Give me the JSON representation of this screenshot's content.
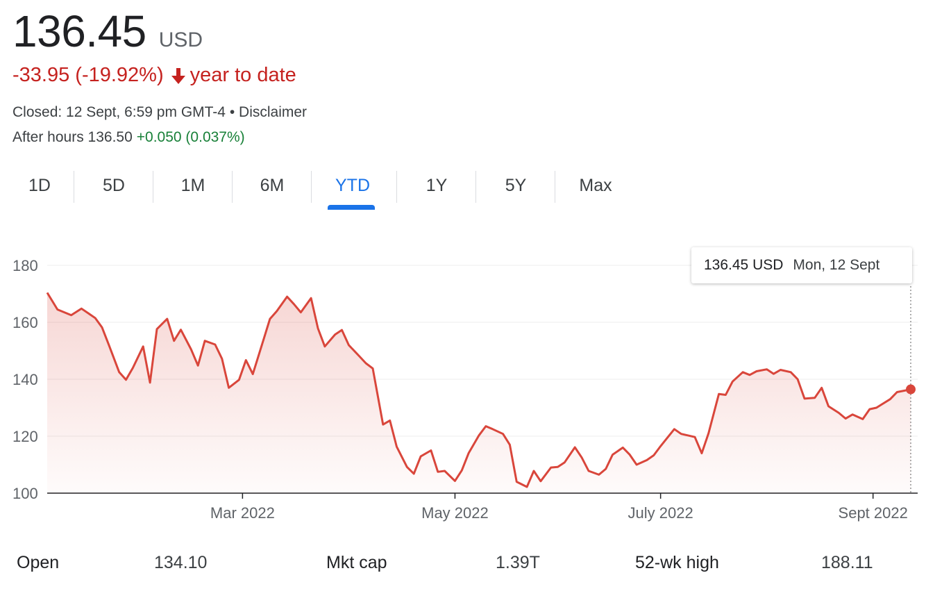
{
  "header": {
    "price": "136.45",
    "currency": "USD",
    "change": "-33.95 (-19.92%)",
    "change_period": "year to date",
    "closed_text": "Closed: 12 Sept, 6:59 pm GMT-4",
    "bullet": "•",
    "disclaimer": "Disclaimer",
    "after_hours_label": "After hours 136.50",
    "after_hours_change": "+0.050 (0.037%)"
  },
  "tabs": [
    {
      "label": "1D"
    },
    {
      "label": "5D"
    },
    {
      "label": "1M"
    },
    {
      "label": "6M"
    },
    {
      "label": "YTD",
      "active": true
    },
    {
      "label": "1Y"
    },
    {
      "label": "5Y"
    },
    {
      "label": "Max"
    }
  ],
  "tooltip": {
    "value": "136.45 USD",
    "date": "Mon, 12 Sept"
  },
  "colors": {
    "line": "#d9463b",
    "fill": "#d9463b",
    "accent": "#1a73e8",
    "negative": "#c5221f",
    "positive": "#188038"
  },
  "chart_data": {
    "type": "area",
    "title": "",
    "xlabel": "",
    "ylabel": "",
    "ylim": [
      100,
      180
    ],
    "yticks": [
      "100",
      "120",
      "140",
      "160",
      "180"
    ],
    "xticks": [
      {
        "label": "Mar 2022",
        "date": "2022-03-01"
      },
      {
        "label": "May 2022",
        "date": "2022-05-02"
      },
      {
        "label": "July 2022",
        "date": "2022-07-01"
      },
      {
        "label": "Sept 2022",
        "date": "2022-09-01"
      }
    ],
    "grid": true,
    "series": [
      {
        "x": [
          "2022-01-03",
          "2022-01-06",
          "2022-01-10",
          "2022-01-13",
          "2022-01-17",
          "2022-01-19",
          "2022-01-21",
          "2022-01-24",
          "2022-01-26",
          "2022-01-28",
          "2022-01-31",
          "2022-02-02",
          "2022-02-04",
          "2022-02-07",
          "2022-02-09",
          "2022-02-11",
          "2022-02-14",
          "2022-02-16",
          "2022-02-18",
          "2022-02-21",
          "2022-02-23",
          "2022-02-25",
          "2022-02-28",
          "2022-03-02",
          "2022-03-04",
          "2022-03-07",
          "2022-03-09",
          "2022-03-11",
          "2022-03-14",
          "2022-03-16",
          "2022-03-18",
          "2022-03-21",
          "2022-03-23",
          "2022-03-25",
          "2022-03-28",
          "2022-03-30",
          "2022-04-01",
          "2022-04-04",
          "2022-04-06",
          "2022-04-08",
          "2022-04-11",
          "2022-04-13",
          "2022-04-15",
          "2022-04-18",
          "2022-04-20",
          "2022-04-22",
          "2022-04-25",
          "2022-04-27",
          "2022-04-29",
          "2022-05-02",
          "2022-05-04",
          "2022-05-06",
          "2022-05-09",
          "2022-05-11",
          "2022-05-13",
          "2022-05-16",
          "2022-05-18",
          "2022-05-20",
          "2022-05-23",
          "2022-05-25",
          "2022-05-27",
          "2022-05-30",
          "2022-06-01",
          "2022-06-03",
          "2022-06-06",
          "2022-06-08",
          "2022-06-10",
          "2022-06-13",
          "2022-06-15",
          "2022-06-17",
          "2022-06-20",
          "2022-06-22",
          "2022-06-24",
          "2022-06-27",
          "2022-06-29",
          "2022-07-01",
          "2022-07-05",
          "2022-07-07",
          "2022-07-11",
          "2022-07-13",
          "2022-07-15",
          "2022-07-18",
          "2022-07-20",
          "2022-07-22",
          "2022-07-25",
          "2022-07-27",
          "2022-07-29",
          "2022-08-01",
          "2022-08-03",
          "2022-08-05",
          "2022-08-08",
          "2022-08-10",
          "2022-08-12",
          "2022-08-15",
          "2022-08-17",
          "2022-08-19",
          "2022-08-22",
          "2022-08-24",
          "2022-08-26",
          "2022-08-29",
          "2022-08-31",
          "2022-09-02",
          "2022-09-06",
          "2022-09-08",
          "2022-09-12"
        ],
        "values": [
          170.4,
          164.5,
          162.5,
          164.8,
          161.5,
          158.2,
          152.0,
          142.5,
          139.8,
          144.0,
          151.5,
          138.8,
          157.6,
          161.2,
          153.5,
          157.4,
          150.5,
          144.8,
          153.5,
          152.2,
          147.2,
          137.0,
          139.8,
          146.7,
          141.8,
          153.4,
          161.2,
          163.9,
          169.0,
          166.4,
          163.5,
          168.5,
          157.9,
          151.5,
          155.7,
          157.3,
          152.0,
          148.2,
          145.6,
          143.8,
          124.1,
          125.5,
          116.3,
          109.2,
          106.8,
          112.9,
          115.0,
          107.5,
          107.8,
          104.3,
          108.0,
          114.1,
          120.3,
          123.5,
          122.5,
          120.8,
          117.0,
          104.0,
          102.2,
          107.8,
          104.2,
          109.0,
          109.2,
          110.8,
          116.1,
          112.5,
          107.8,
          106.5,
          108.5,
          113.5,
          116.0,
          113.5,
          110.0,
          111.6,
          113.3,
          116.5,
          122.5,
          120.8,
          119.7,
          114.0,
          121.0,
          134.8,
          134.5,
          139.2,
          142.5,
          141.5,
          142.8,
          143.5,
          141.9,
          143.3,
          142.5,
          140.0,
          133.2,
          133.5,
          137.0,
          130.5,
          128.2,
          126.2,
          127.6,
          126.0,
          129.5,
          130.0,
          133.0,
          135.5,
          136.45
        ]
      }
    ]
  },
  "stats": [
    {
      "label": "Open",
      "value": "134.10"
    },
    {
      "label": "Mkt cap",
      "value": "1.39T"
    },
    {
      "label": "52-wk high",
      "value": "188.11"
    }
  ]
}
